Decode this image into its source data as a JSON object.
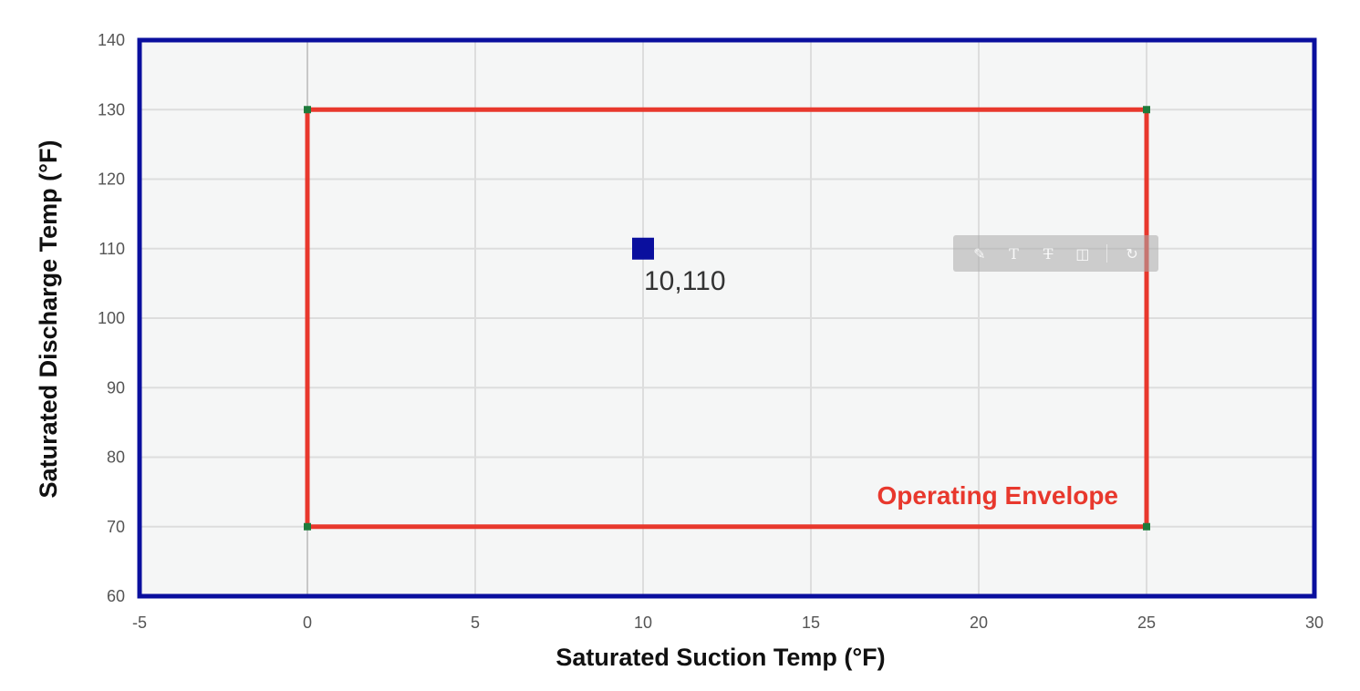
{
  "chart_data": {
    "type": "scatter",
    "xlabel": "Saturated Suction Temp (°F)",
    "ylabel": "Saturated Discharge Temp (°F)",
    "xlim": [
      -5,
      30
    ],
    "ylim": [
      60,
      140
    ],
    "x_ticks": [
      -5,
      0,
      5,
      10,
      15,
      20,
      25,
      30
    ],
    "y_ticks": [
      60,
      70,
      80,
      90,
      100,
      110,
      120,
      130,
      140
    ],
    "x_tick_labels": [
      "-5",
      "0",
      "5",
      "10",
      "15",
      "20",
      "25",
      "30"
    ],
    "y_tick_labels": [
      "60",
      "70",
      "80",
      "90",
      "100",
      "110",
      "120",
      "130",
      "140"
    ],
    "grid": true,
    "envelope": {
      "label": "Operating Envelope",
      "color": "#e8382d",
      "vertex_color": "#1e7b3c",
      "points": [
        [
          0,
          70
        ],
        [
          0,
          130
        ],
        [
          25,
          130
        ],
        [
          25,
          70
        ]
      ]
    },
    "point": {
      "x": 10,
      "y": 110,
      "label": "10,110",
      "color": "#0a0f9e"
    },
    "frame_color": "#0a0f9e",
    "plot_background": "#f5f6f6",
    "grid_color": "#dddddd"
  },
  "toolbar": {
    "icons": [
      "pencil-icon",
      "text-icon",
      "strikethrough-icon",
      "crop-icon",
      "redo-icon"
    ]
  }
}
